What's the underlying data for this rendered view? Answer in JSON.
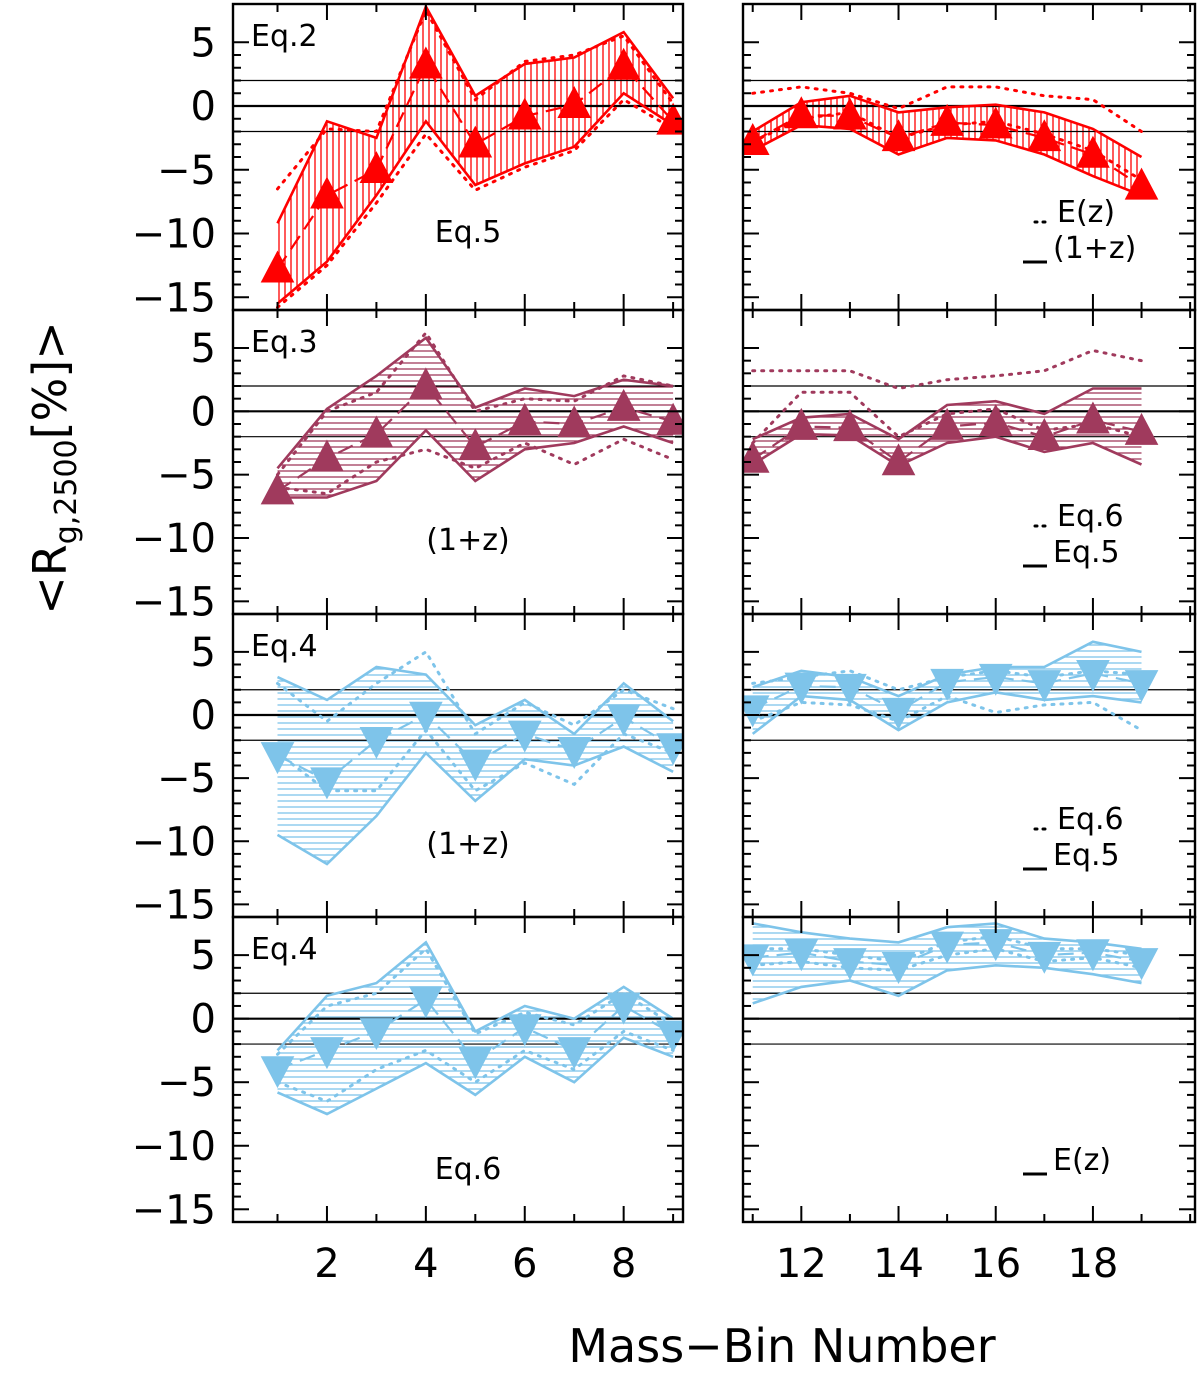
{
  "chart_data": {
    "type": "line",
    "xlabel": "Mass−Bin Number",
    "ylabel": "<R",
    "ylabel_sub": "g,2500",
    "ylabel_unit": "[%]>",
    "y_tick_labels": [
      "5",
      "0",
      "−5",
      "−10",
      "−15"
    ],
    "y_ticks": [
      5,
      0,
      -5,
      -10,
      -15
    ],
    "ylim": [
      -16,
      8
    ],
    "reference_lines": [
      0,
      2,
      -2
    ],
    "left_x_ticks": [
      2,
      4,
      6,
      8
    ],
    "right_x_ticks": [
      12,
      14,
      16,
      18
    ],
    "left_xlim": [
      0.1,
      9.2
    ],
    "right_xlim": [
      10.8,
      20.1
    ],
    "colors": {
      "red": "#ff0000",
      "maroon": "#a03a5d",
      "blue": "#7ec4ea"
    },
    "panels": [
      {
        "row": 0,
        "side": "left",
        "color": "red",
        "marker": "up",
        "hatch": "vertical",
        "label_top": "Eq.2",
        "label_bottom": "Eq.5",
        "x": [
          1,
          2,
          3,
          4,
          5,
          6,
          7,
          8,
          9
        ],
        "center": [
          -12.8,
          -7.0,
          -5.0,
          3.2,
          -3.0,
          -0.8,
          0.1,
          3.1,
          -1.2
        ],
        "upper": [
          -9.2,
          -1.2,
          -2.5,
          7.8,
          0.8,
          3.3,
          3.8,
          5.8,
          0.6
        ],
        "lower": [
          -15.5,
          -12.2,
          -7.0,
          -1.2,
          -6.2,
          -4.5,
          -3.2,
          1.0,
          -1.5
        ],
        "dotted_upper": [
          -6.5,
          -1.8,
          -2.0,
          7.5,
          0.5,
          3.5,
          4.0,
          5.5,
          0.2
        ],
        "dotted_lower": [
          -15.8,
          -12.5,
          -7.6,
          -2.2,
          -6.6,
          -4.8,
          -3.5,
          0.5,
          -1.8
        ]
      },
      {
        "row": 0,
        "side": "right",
        "color": "red",
        "marker": "up",
        "hatch": "vertical",
        "legend_dotted": "E(z)",
        "legend_solid": "(1+z)",
        "x": [
          11,
          12,
          13,
          14,
          15,
          16,
          17,
          18,
          19
        ],
        "center": [
          -2.8,
          -0.7,
          -0.8,
          -2.5,
          -1.3,
          -1.5,
          -2.5,
          -3.8,
          -6.3
        ],
        "upper": [
          -2.0,
          0.3,
          0.8,
          -0.5,
          -0.1,
          0.1,
          -0.5,
          -1.8,
          -4.0
        ],
        "lower": [
          -3.5,
          -1.5,
          -1.8,
          -3.8,
          -2.5,
          -2.7,
          -3.8,
          -5.5,
          -7.0
        ],
        "dotted_upper": [
          1.0,
          1.5,
          1.0,
          -0.2,
          1.5,
          1.5,
          0.8,
          0.5,
          -2.0
        ],
        "dotted_lower": [
          -2.8,
          -1.0,
          -0.5,
          -2.5,
          -1.5,
          -1.2,
          -2.2,
          -3.5,
          -5.8
        ]
      },
      {
        "row": 1,
        "side": "left",
        "color": "maroon",
        "marker": "up",
        "hatch": "horizontal",
        "label_top": "Eq.3",
        "label_bottom": "(1+z)",
        "x": [
          1,
          2,
          3,
          4,
          5,
          6,
          7,
          8,
          9
        ],
        "center": [
          -6.3,
          -3.7,
          -1.8,
          2.0,
          -2.8,
          -0.8,
          -1.0,
          0.3,
          -0.8
        ],
        "upper": [
          -4.5,
          0.2,
          2.8,
          5.8,
          0.3,
          1.8,
          1.2,
          2.5,
          2.0
        ],
        "lower": [
          -6.8,
          -6.8,
          -5.5,
          -1.5,
          -5.5,
          -3.0,
          -2.5,
          -1.2,
          -2.5
        ],
        "dotted_upper": [
          -5.0,
          0.0,
          1.5,
          6.2,
          0.0,
          1.0,
          0.8,
          2.8,
          2.0
        ],
        "dotted_lower": [
          -6.0,
          -6.5,
          -4.0,
          -3.0,
          -4.5,
          -2.5,
          -4.2,
          -2.2,
          -3.8
        ]
      },
      {
        "row": 1,
        "side": "right",
        "color": "maroon",
        "marker": "up",
        "hatch": "horizontal",
        "legend_dotted": "Eq.6",
        "legend_solid": "Eq.5",
        "x": [
          11,
          12,
          13,
          14,
          15,
          16,
          17,
          18,
          19
        ],
        "center": [
          -3.8,
          -1.2,
          -1.3,
          -4.0,
          -1.2,
          -0.9,
          -2.0,
          -0.7,
          -1.6
        ],
        "upper": [
          -2.2,
          -0.5,
          -0.2,
          -2.2,
          0.5,
          0.8,
          -0.2,
          1.8,
          1.8
        ],
        "lower": [
          -4.2,
          -1.8,
          -1.9,
          -4.3,
          -2.5,
          -2.0,
          -3.2,
          -2.5,
          -4.2
        ],
        "dotted_upper": [
          3.2,
          3.2,
          3.2,
          1.8,
          2.5,
          2.8,
          3.2,
          4.8,
          4.0
        ],
        "dotted_lower": [
          -2.5,
          1.5,
          1.5,
          -2.0,
          -0.2,
          0.2,
          -1.5,
          -1.0,
          -2.0
        ]
      },
      {
        "row": 2,
        "side": "left",
        "color": "blue",
        "marker": "down",
        "hatch": "horizontal",
        "label_top": "Eq.4",
        "label_bottom": "(1+z)",
        "x": [
          1,
          2,
          3,
          4,
          5,
          6,
          7,
          8,
          9
        ],
        "center": [
          -3.2,
          -5.2,
          -2.0,
          0.0,
          -3.8,
          -1.5,
          -2.8,
          -0.2,
          -2.5
        ],
        "upper": [
          3.0,
          1.2,
          3.8,
          3.2,
          -0.8,
          1.2,
          -1.5,
          2.5,
          -0.5
        ],
        "lower": [
          -9.5,
          -11.8,
          -8.0,
          -3.0,
          -6.8,
          -3.5,
          -4.0,
          -2.5,
          -4.5
        ],
        "dotted_upper": [
          2.5,
          -0.5,
          2.5,
          5.0,
          -1.5,
          1.0,
          -0.8,
          2.0,
          0.5
        ],
        "dotted_lower": [
          -3.0,
          -6.0,
          -6.0,
          -1.2,
          -6.0,
          -3.8,
          -5.5,
          -1.5,
          -3.0
        ]
      },
      {
        "row": 2,
        "side": "right",
        "color": "blue",
        "marker": "down",
        "hatch": "horizontal",
        "legend_dotted": "Eq.6",
        "legend_solid": "Eq.5",
        "x": [
          11,
          12,
          13,
          14,
          15,
          16,
          17,
          18,
          19
        ],
        "center": [
          0.5,
          2.3,
          2.2,
          0.3,
          2.6,
          3.0,
          2.5,
          3.3,
          2.5
        ],
        "upper": [
          2.2,
          3.5,
          3.0,
          1.5,
          3.2,
          3.8,
          3.8,
          5.8,
          5.0
        ],
        "lower": [
          -1.5,
          1.5,
          1.2,
          -1.2,
          1.0,
          1.8,
          1.2,
          1.5,
          1.0
        ],
        "dotted_upper": [
          2.5,
          3.0,
          3.5,
          2.0,
          3.0,
          3.5,
          3.0,
          3.5,
          3.2
        ],
        "dotted_lower": [
          -0.5,
          1.0,
          0.8,
          -0.5,
          1.5,
          0.2,
          0.8,
          1.0,
          -1.2
        ]
      },
      {
        "row": 3,
        "side": "left",
        "color": "blue",
        "marker": "down",
        "hatch": "horizontal",
        "label_top": "Eq.4",
        "label_bottom": "Eq.6",
        "x": [
          1,
          2,
          3,
          4,
          5,
          6,
          7,
          8,
          9
        ],
        "center": [
          -4.0,
          -2.5,
          -1.0,
          1.5,
          -3.3,
          -0.7,
          -2.5,
          1.0,
          -1.2
        ],
        "upper": [
          -2.5,
          1.8,
          2.8,
          6.0,
          -1.0,
          1.0,
          0.0,
          2.5,
          0.0
        ],
        "lower": [
          -5.8,
          -7.5,
          -5.5,
          -3.5,
          -6.0,
          -3.0,
          -5.0,
          -1.5,
          -3.0
        ],
        "dotted_upper": [
          -2.8,
          1.0,
          2.0,
          5.5,
          -1.2,
          0.5,
          -0.5,
          2.0,
          -0.5
        ],
        "dotted_lower": [
          -5.0,
          -6.5,
          -4.0,
          -2.5,
          -5.0,
          -2.5,
          -4.0,
          -1.0,
          -2.5
        ]
      },
      {
        "row": 3,
        "side": "right",
        "color": "blue",
        "marker": "down",
        "hatch": "horizontal",
        "legend_solid": "E(z)",
        "x": [
          11,
          12,
          13,
          14,
          15,
          16,
          17,
          18,
          19
        ],
        "center": [
          4.8,
          5.2,
          4.5,
          4.2,
          5.8,
          6.0,
          5.0,
          5.2,
          4.5
        ],
        "upper": [
          7.5,
          6.8,
          6.3,
          6.0,
          7.2,
          7.5,
          6.3,
          6.0,
          5.5
        ],
        "lower": [
          1.2,
          2.5,
          3.0,
          1.8,
          3.8,
          4.2,
          4.0,
          3.5,
          2.8
        ],
        "dotted_upper": [
          5.5,
          5.5,
          5.0,
          4.5,
          6.0,
          6.5,
          5.5,
          5.5,
          5.0
        ],
        "dotted_lower": [
          4.2,
          4.5,
          4.0,
          3.8,
          5.0,
          5.5,
          4.5,
          4.8,
          4.0
        ]
      }
    ]
  }
}
